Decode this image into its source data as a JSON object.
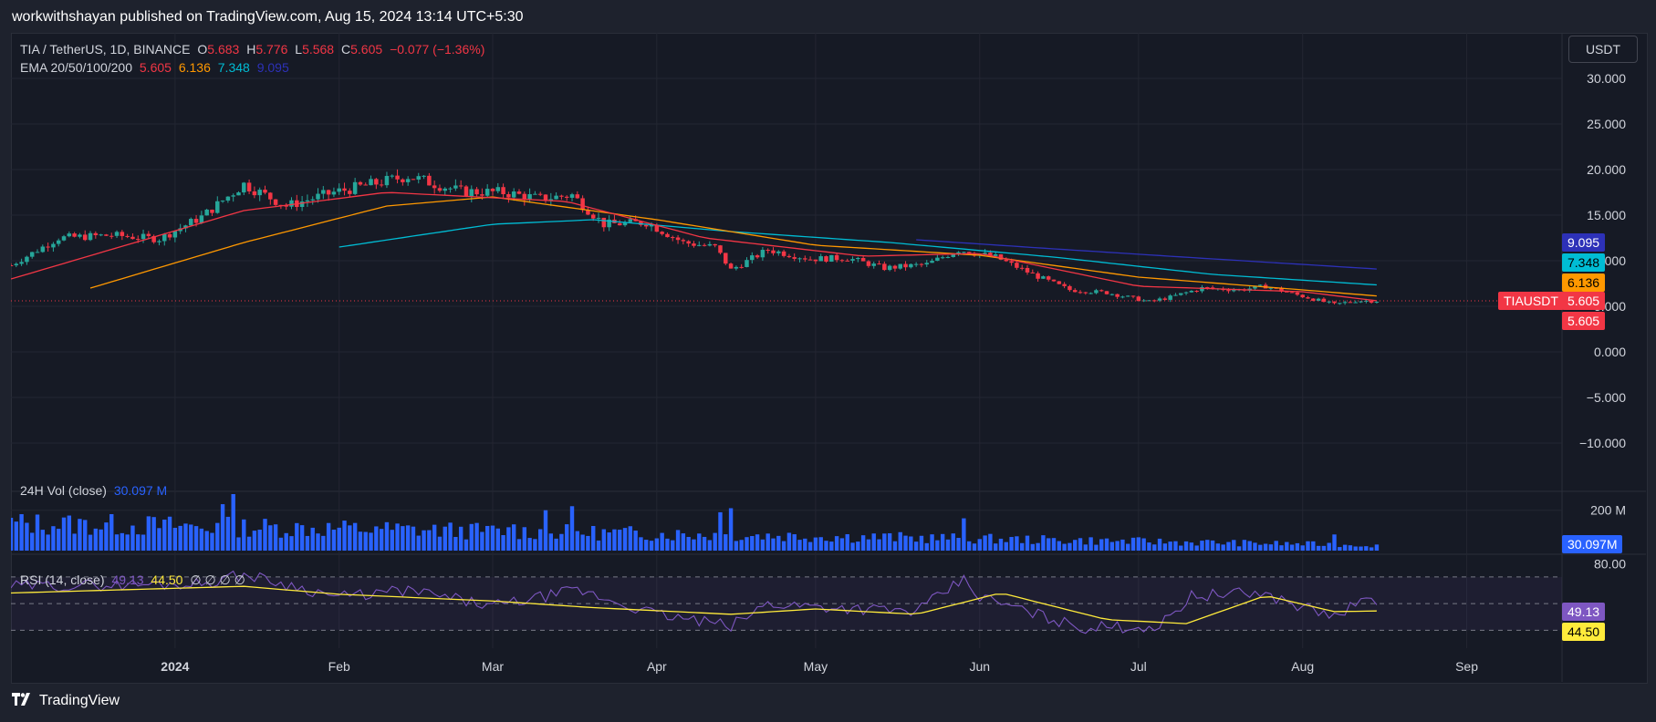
{
  "publisher": "workwithshayan published on TradingView.com, Aug 15, 2024 13:14 UTC+5:30",
  "brand": "TradingView",
  "brand_icon": "tradingview-logo-icon",
  "currency": "USDT",
  "legend": {
    "symbol": "TIA / TetherUS, 1D, BINANCE",
    "o_label": "O",
    "o": "5.683",
    "h_label": "H",
    "h": "5.776",
    "l_label": "L",
    "l": "5.568",
    "c_label": "C",
    "c": "5.605",
    "change": "−0.077 (−1.36%)",
    "ema_label": "EMA 20/50/100/200",
    "ema20": "5.605",
    "ema50": "6.136",
    "ema100": "7.348",
    "ema200": "9.095"
  },
  "vol_legend": {
    "label": "24H Vol (close)",
    "value": "30.097 M"
  },
  "rsi_legend": {
    "label": "RSI (14, close)",
    "rsi": "49.13",
    "ma": "44.50",
    "extra": "∅ ∅ ∅ ∅"
  },
  "tags": {
    "ema200": "9.095",
    "ema100": "7.348",
    "ema50": "6.136",
    "symbol": "TIAUSDT",
    "price": "5.605",
    "ema20": "5.605",
    "vol": "30.097M",
    "rsi": "49.13",
    "rsi_ma": "44.50"
  },
  "colors": {
    "up": "#26a69a",
    "down": "#f23645",
    "ema20": "#f23645",
    "ema50": "#ff9800",
    "ema100": "#00bcd4",
    "ema200": "#2d31b8",
    "volume": "#2962ff",
    "rsi": "#7e57c2",
    "rsi_ma": "#ffeb3b"
  },
  "chart_data": [
    {
      "type": "candlestick",
      "title": "TIA / TetherUS, 1D, BINANCE",
      "x_ticks": [
        "2024",
        "Feb",
        "Mar",
        "Apr",
        "May",
        "Jun",
        "Jul",
        "Aug",
        "Sep"
      ],
      "y_ticks": [
        "30.000",
        "25.000",
        "20.000",
        "15.000",
        "10.000",
        "5.000",
        "0.000",
        "−5.000",
        "−10.000"
      ],
      "ylim": [
        -15,
        35
      ],
      "x_range": [
        "2023-12-01",
        "2024-09-19"
      ],
      "close_series": [
        [
          "2023-12-01",
          9.5
        ],
        [
          "2023-12-10",
          12.5
        ],
        [
          "2023-12-20",
          12.8
        ],
        [
          "2023-12-29",
          12.4
        ],
        [
          "2024-01-06",
          14.8
        ],
        [
          "2024-01-14",
          18.4
        ],
        [
          "2024-01-22",
          16.0
        ],
        [
          "2024-01-31",
          17.5
        ],
        [
          "2024-02-08",
          18.5
        ],
        [
          "2024-02-14",
          19.3
        ],
        [
          "2024-02-24",
          17.6
        ],
        [
          "2024-03-03",
          17.5
        ],
        [
          "2024-03-10",
          16.8
        ],
        [
          "2024-03-16",
          17.2
        ],
        [
          "2024-03-22",
          14.0
        ],
        [
          "2024-03-30",
          14.2
        ],
        [
          "2024-04-06",
          12.0
        ],
        [
          "2024-04-12",
          11.5
        ],
        [
          "2024-04-15",
          9.0
        ],
        [
          "2024-04-22",
          11.2
        ],
        [
          "2024-04-30",
          10.2
        ],
        [
          "2024-05-07",
          10.3
        ],
        [
          "2024-05-14",
          9.2
        ],
        [
          "2024-05-22",
          9.6
        ],
        [
          "2024-05-28",
          11.2
        ],
        [
          "2024-06-04",
          10.4
        ],
        [
          "2024-06-11",
          8.5
        ],
        [
          "2024-06-18",
          6.8
        ],
        [
          "2024-06-25",
          6.5
        ],
        [
          "2024-07-03",
          5.5
        ],
        [
          "2024-07-07",
          6.0
        ],
        [
          "2024-07-13",
          7.0
        ],
        [
          "2024-07-20",
          6.8
        ],
        [
          "2024-07-25",
          7.2
        ],
        [
          "2024-07-30",
          6.4
        ],
        [
          "2024-08-03",
          5.8
        ],
        [
          "2024-08-07",
          5.2
        ],
        [
          "2024-08-11",
          5.6
        ],
        [
          "2024-08-15",
          5.605
        ]
      ],
      "ema20": [
        [
          "2023-12-01",
          8.0
        ],
        [
          "2024-01-14",
          15.5
        ],
        [
          "2024-02-10",
          17.5
        ],
        [
          "2024-03-15",
          16.5
        ],
        [
          "2024-04-10",
          12.5
        ],
        [
          "2024-05-10",
          10.5
        ],
        [
          "2024-06-01",
          10.8
        ],
        [
          "2024-07-01",
          7.2
        ],
        [
          "2024-08-01",
          6.6
        ],
        [
          "2024-08-15",
          5.605
        ]
      ],
      "ema50": [
        [
          "2023-12-16",
          7.0
        ],
        [
          "2024-01-14",
          12.0
        ],
        [
          "2024-02-10",
          16.0
        ],
        [
          "2024-03-01",
          17.0
        ],
        [
          "2024-04-01",
          14.5
        ],
        [
          "2024-05-01",
          11.7
        ],
        [
          "2024-06-01",
          10.6
        ],
        [
          "2024-07-01",
          8.2
        ],
        [
          "2024-08-01",
          6.8
        ],
        [
          "2024-08-15",
          6.136
        ]
      ],
      "ema100": [
        [
          "2024-02-01",
          11.5
        ],
        [
          "2024-03-01",
          14.0
        ],
        [
          "2024-03-20",
          14.5
        ],
        [
          "2024-04-15",
          13.2
        ],
        [
          "2024-05-15",
          12.0
        ],
        [
          "2024-06-15",
          10.4
        ],
        [
          "2024-07-15",
          8.5
        ],
        [
          "2024-08-15",
          7.348
        ]
      ],
      "ema200": [
        [
          "2024-05-20",
          12.3
        ],
        [
          "2024-06-15",
          11.3
        ],
        [
          "2024-07-15",
          10.2
        ],
        [
          "2024-08-15",
          9.095
        ]
      ],
      "last_price": 5.605
    },
    {
      "type": "bar",
      "title": "24H Vol (close)",
      "y_ticks": [
        "200 M"
      ],
      "ylim": [
        0,
        280
      ],
      "unit": "M",
      "values_by_date": [
        [
          "2024-01-10",
          230
        ],
        [
          "2024-01-12",
          280
        ],
        [
          "2024-02-08",
          120
        ],
        [
          "2024-03-05",
          130
        ],
        [
          "2024-03-11",
          200
        ],
        [
          "2024-03-16",
          220
        ],
        [
          "2024-04-13",
          190
        ],
        [
          "2024-04-15",
          210
        ],
        [
          "2024-05-29",
          160
        ],
        [
          "2024-08-07",
          80
        ]
      ],
      "last": 30.097
    },
    {
      "type": "line",
      "title": "RSI (14, close)",
      "y_ticks": [
        "80.00"
      ],
      "ylim": [
        20,
        85
      ],
      "bands": [
        30,
        50,
        70
      ],
      "rsi_points": [
        [
          "2023-12-01",
          63
        ],
        [
          "2024-01-06",
          65
        ],
        [
          "2024-01-14",
          72
        ],
        [
          "2024-02-01",
          55
        ],
        [
          "2024-02-14",
          60
        ],
        [
          "2024-03-01",
          48
        ],
        [
          "2024-03-17",
          60
        ],
        [
          "2024-04-01",
          42
        ],
        [
          "2024-04-15",
          33
        ],
        [
          "2024-04-22",
          50
        ],
        [
          "2024-05-20",
          44
        ],
        [
          "2024-05-29",
          68
        ],
        [
          "2024-06-01",
          55
        ],
        [
          "2024-06-20",
          32
        ],
        [
          "2024-07-05",
          33
        ],
        [
          "2024-07-11",
          56
        ],
        [
          "2024-07-24",
          58
        ],
        [
          "2024-08-07",
          40
        ],
        [
          "2024-08-12",
          52
        ],
        [
          "2024-08-15",
          49.13
        ]
      ],
      "ma_points": [
        [
          "2023-12-01",
          58
        ],
        [
          "2024-01-14",
          63
        ],
        [
          "2024-02-01",
          57
        ],
        [
          "2024-03-01",
          52
        ],
        [
          "2024-03-20",
          47
        ],
        [
          "2024-04-15",
          42
        ],
        [
          "2024-05-01",
          46
        ],
        [
          "2024-05-20",
          42
        ],
        [
          "2024-06-05",
          58
        ],
        [
          "2024-06-25",
          38
        ],
        [
          "2024-07-10",
          35
        ],
        [
          "2024-07-25",
          56
        ],
        [
          "2024-08-07",
          44
        ],
        [
          "2024-08-15",
          44.5
        ]
      ]
    }
  ]
}
